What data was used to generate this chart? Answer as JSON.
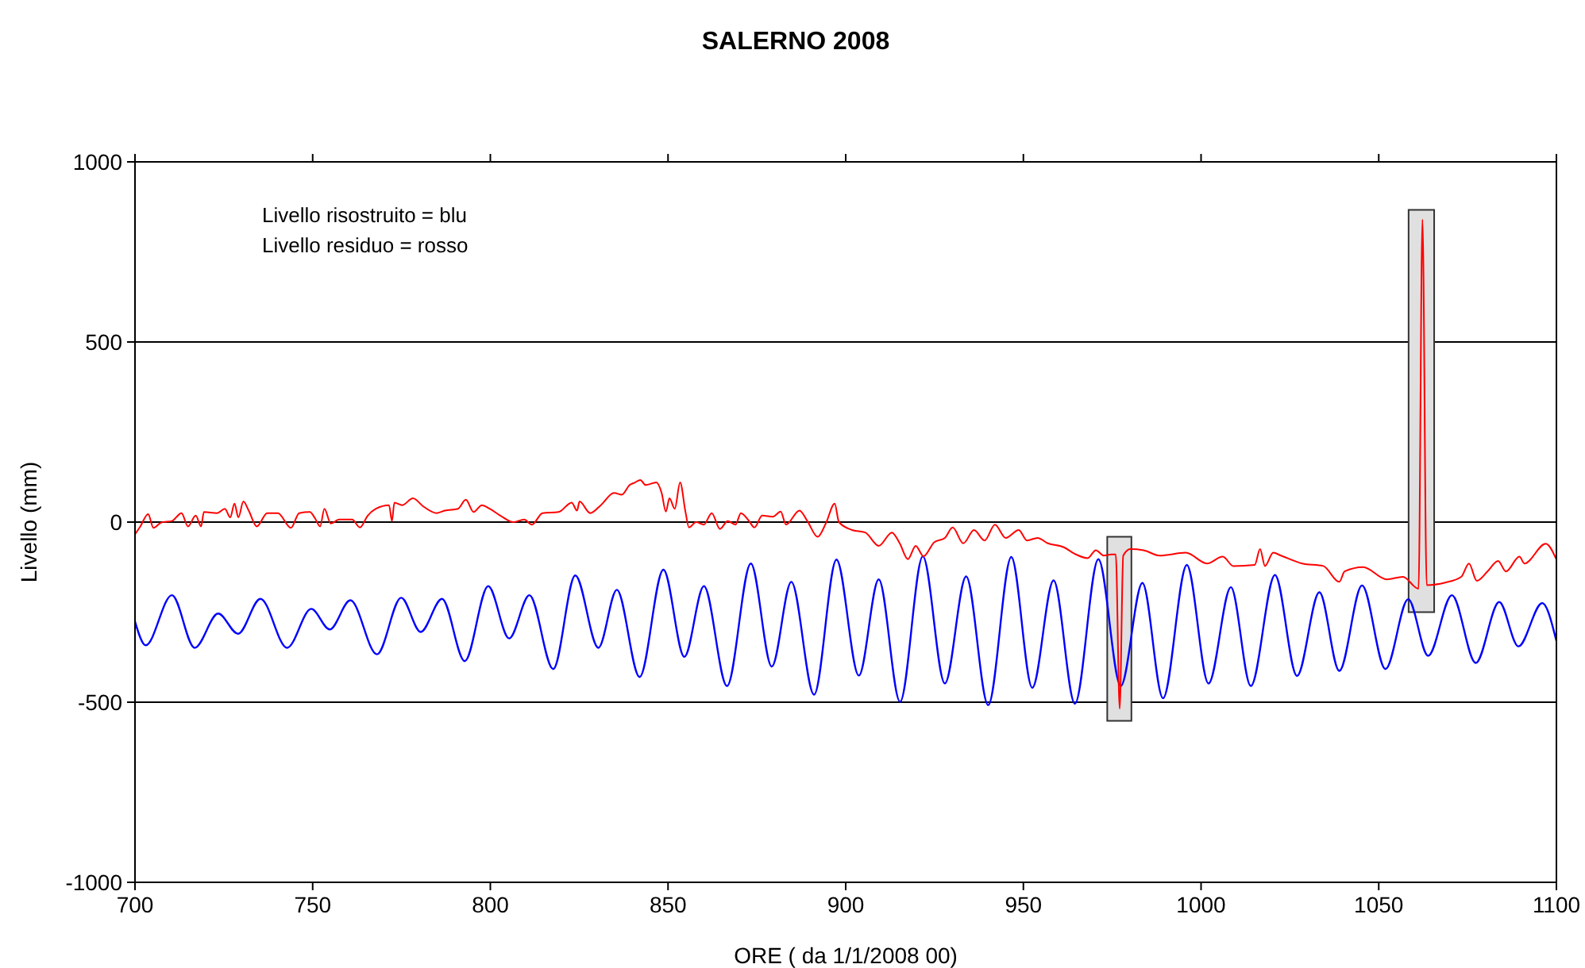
{
  "chart_data": {
    "type": "line",
    "title": "SALERNO 2008",
    "xlabel": "ORE ( da 1/1/2008 00)",
    "ylabel": "Livello (mm)",
    "annotations": [
      "Livello risostruito = blu",
      "Livello residuo = rosso"
    ],
    "xlim": [
      700,
      1100
    ],
    "xticks": [
      700,
      750,
      800,
      850,
      900,
      950,
      1000,
      1050,
      1100
    ],
    "ylim": [
      -1000,
      1000
    ],
    "yticks": [
      -1000,
      -500,
      0,
      500,
      1000
    ],
    "grid": "y",
    "line_style": "solid",
    "marker": "none",
    "series": [
      {
        "color": "#0000ff",
        "x": [
          700,
          703,
          710.4,
          716.8,
          723.4,
          729,
          735.3,
          742.8,
          749.6,
          754.8,
          760.6,
          768.1,
          774.9,
          780.4,
          786.4,
          792.8,
          799.4,
          805.3,
          811,
          817.7,
          823.9,
          830.4,
          835.6,
          842,
          848.7,
          854.6,
          860.1,
          866.6,
          873.3,
          879.2,
          884.7,
          891.1,
          897.4,
          903.7,
          909.3,
          915.3,
          921.7,
          927.9,
          933.9,
          940.1,
          946.6,
          952.5,
          958.5,
          964.5,
          971.1,
          977.4,
          983.5,
          989.3,
          996,
          1002.1,
          1008.4,
          1014,
          1020.8,
          1027,
          1033.3,
          1038.9,
          1045.3,
          1051.9,
          1058.3,
          1063.9,
          1070.6,
          1077.3,
          1083.9,
          1089.3,
          1096,
          1100
        ],
        "values": [
          -276,
          -342,
          -203,
          -349,
          -254,
          -310,
          -213,
          -349,
          -241,
          -298,
          -217,
          -367,
          -210,
          -305,
          -213,
          -386,
          -178,
          -323,
          -203,
          -408,
          -148,
          -349,
          -188,
          -430,
          -132,
          -374,
          -178,
          -455,
          -115,
          -401,
          -166,
          -479,
          -104,
          -426,
          -159,
          -499,
          -95,
          -448,
          -151,
          -508,
          -97,
          -460,
          -162,
          -504,
          -103,
          -455,
          -169,
          -489,
          -119,
          -448,
          -181,
          -455,
          -147,
          -427,
          -195,
          -413,
          -176,
          -408,
          -214,
          -371,
          -203,
          -391,
          -222,
          -345,
          -225,
          -330
        ]
      },
      {
        "color": "#ff0000",
        "x": [
          700,
          701.5,
          703.7,
          705.2,
          707.4,
          710.4,
          713.1,
          714.9,
          717.1,
          718.6,
          719.4,
          723.1,
          725.3,
          726.8,
          728,
          729.1,
          730.5,
          732,
          734.3,
          737.2,
          740.2,
          743.9,
          746.2,
          749.2,
          750.7,
          752.1,
          753.3,
          755.1,
          757.4,
          761.1,
          763.3,
          765.5,
          767.8,
          771.5,
          772.3,
          773,
          775.2,
          778.2,
          781.2,
          784.9,
          787.2,
          790.9,
          793.1,
          795.3,
          797.6,
          799.8,
          802.8,
          806.5,
          809.5,
          811.7,
          814.7,
          819.2,
          822.9,
          824.4,
          825.1,
          828.1,
          831.1,
          834.8,
          837,
          839.2,
          840.7,
          842.2,
          843.7,
          846.7,
          848.2,
          849.4,
          850.4,
          851.9,
          853.4,
          854.9,
          855.9,
          857.9,
          860.1,
          862.3,
          864.6,
          866.8,
          869,
          870.5,
          872.8,
          874.3,
          876.5,
          879.5,
          881.7,
          883.2,
          887,
          889.2,
          892.1,
          894.4,
          896.9,
          898.1,
          901.8,
          905.5,
          909.3,
          913,
          915.2,
          917.5,
          919.7,
          921.9,
          924.9,
          927.9,
          930.1,
          933.1,
          936.1,
          939.1,
          942,
          945,
          948.7,
          951,
          954,
          956.9,
          961.4,
          964.4,
          968.1,
          970.4,
          972.6,
          974.8,
          976,
          977.1,
          978.1,
          980.1,
          983.8,
          988.3,
          995.7,
          1001.7,
          1006.1,
          1009.1,
          1015.1,
          1016.6,
          1018,
          1020.3,
          1022.5,
          1028.5,
          1034.4,
          1038.9,
          1040.4,
          1045.6,
          1052.3,
          1056.8,
          1061.2,
          1062.3,
          1063.5,
          1068.7,
          1073.2,
          1075.4,
          1077.6,
          1080.6,
          1083.6,
          1085.8,
          1089.6,
          1091,
          1097,
          1100
        ],
        "values": [
          -34,
          -12,
          22,
          -16,
          -1,
          3,
          25,
          -12,
          18,
          -12,
          28,
          25,
          37,
          13,
          51,
          13,
          57,
          32,
          -12,
          25,
          25,
          -16,
          25,
          28,
          10,
          -12,
          37,
          -4,
          7,
          7,
          -15,
          18,
          37,
          47,
          3,
          54,
          47,
          66,
          43,
          25,
          32,
          37,
          62,
          28,
          47,
          37,
          18,
          0,
          7,
          -7,
          25,
          28,
          54,
          32,
          57,
          25,
          47,
          81,
          76,
          103,
          110,
          117,
          103,
          110,
          81,
          29,
          66,
          37,
          110,
          29,
          -15,
          0,
          -7,
          25,
          -19,
          3,
          -7,
          25,
          3,
          -15,
          18,
          15,
          29,
          -7,
          32,
          3,
          -41,
          -4,
          51,
          0,
          -22,
          -29,
          -66,
          -29,
          -59,
          -103,
          -66,
          -95,
          -56,
          -44,
          -15,
          -59,
          -22,
          -51,
          -7,
          -44,
          -22,
          -51,
          -44,
          -59,
          -70,
          -88,
          -100,
          -78,
          -93,
          -90,
          -90,
          -518,
          -93,
          -75,
          -78,
          -93,
          -85,
          -115,
          -96,
          -122,
          -119,
          -75,
          -122,
          -85,
          -93,
          -115,
          -122,
          -166,
          -137,
          -125,
          -159,
          -152,
          -185,
          840,
          -175,
          -168,
          -152,
          -115,
          -163,
          -137,
          -108,
          -137,
          -96,
          -115,
          -60,
          -104
        ]
      }
    ]
  }
}
